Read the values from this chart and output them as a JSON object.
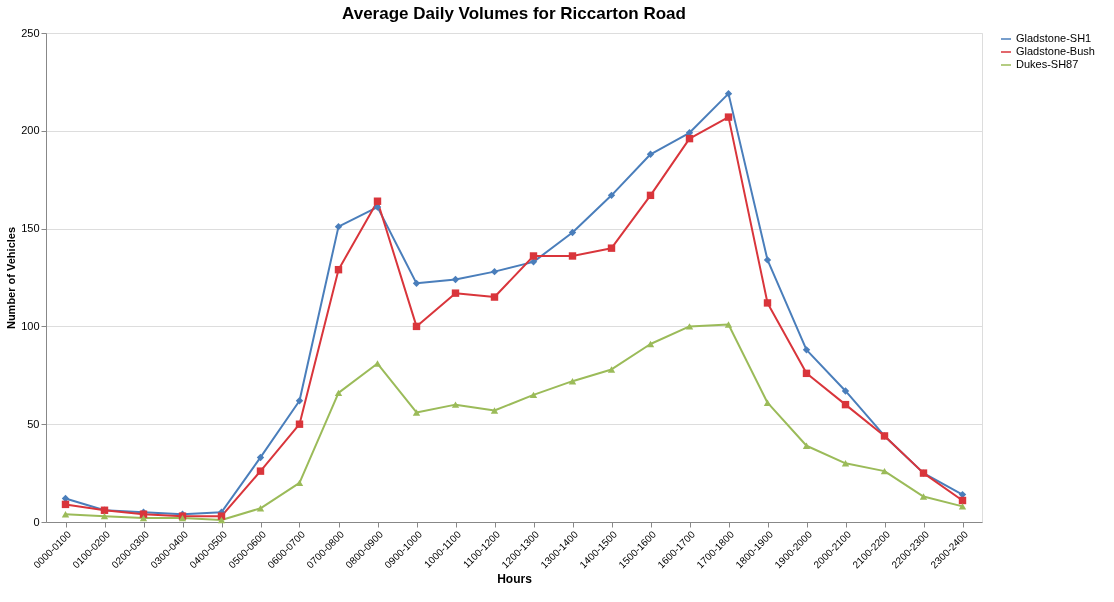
{
  "chart_data": {
    "type": "line",
    "title": "Average Daily Volumes for Riccarton Road",
    "xlabel": "Hours",
    "ylabel": "Number of Vehicles",
    "categories": [
      "0000-0100",
      "0100-0200",
      "0200-0300",
      "0300-0400",
      "0400-0500",
      "0500-0600",
      "0600-0700",
      "0700-0800",
      "0800-0900",
      "0900-1000",
      "1000-1100",
      "1100-1200",
      "1200-1300",
      "1300-1400",
      "1400-1500",
      "1500-1600",
      "1600-1700",
      "1700-1800",
      "1800-1900",
      "1900-2000",
      "2000-2100",
      "2100-2200",
      "2200-2300",
      "2300-2400"
    ],
    "series": [
      {
        "name": "Gladstone-SH1",
        "color": "#4a7ebb",
        "marker": "diamond",
        "values": [
          12,
          6,
          5,
          4,
          5,
          33,
          62,
          151,
          161,
          122,
          124,
          128,
          133,
          148,
          167,
          188,
          199,
          219,
          134,
          88,
          67,
          44,
          25,
          14
        ]
      },
      {
        "name": "Gladstone-Bush",
        "color": "#d9353b",
        "marker": "square",
        "values": [
          9,
          6,
          4,
          3,
          3,
          26,
          50,
          129,
          164,
          100,
          117,
          115,
          136,
          136,
          140,
          167,
          196,
          207,
          112,
          76,
          60,
          44,
          25,
          11
        ]
      },
      {
        "name": "Dukes-SH87",
        "color": "#9bbb59",
        "marker": "triangle",
        "values": [
          4,
          3,
          2,
          2,
          1,
          7,
          20,
          66,
          81,
          56,
          60,
          57,
          65,
          72,
          78,
          91,
          100,
          101,
          61,
          39,
          30,
          26,
          13,
          8
        ]
      }
    ],
    "ylim": [
      0,
      250
    ],
    "yticks": [
      0,
      50,
      100,
      150,
      200,
      250
    ],
    "grid": "y",
    "legend": "right"
  }
}
